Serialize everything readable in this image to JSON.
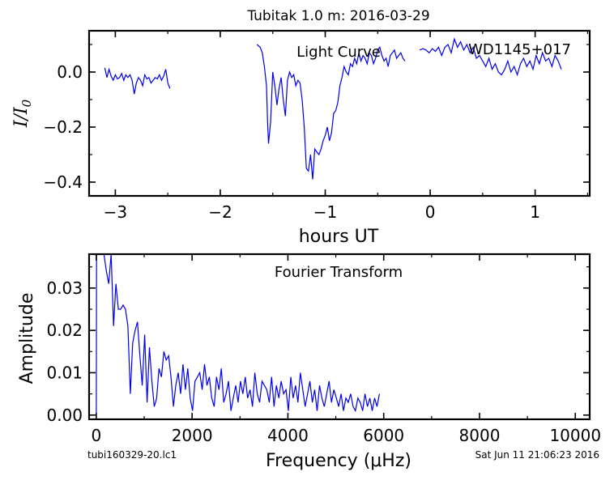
{
  "title": "Tubitak 1.0 m:  2016-03-29",
  "footer": {
    "left": "tubi160329-20.lc1",
    "right": "Sat Jun 11 21:06:23 2016"
  },
  "line_color": "#0000ee",
  "chart_data": [
    {
      "type": "line",
      "annotation_left": "Light Curve",
      "annotation_right": "WD1145+017",
      "xlabel": "hours UT",
      "ylabel": "I/I0",
      "xlim": [
        -3.25,
        1.52
      ],
      "ylim": [
        -0.45,
        0.15
      ],
      "xticks": [
        -3,
        -2,
        -1,
        0,
        1
      ],
      "xtick_labels": [
        "−3",
        "−2",
        "−1",
        "0",
        "1"
      ],
      "yticks": [
        0.0,
        -0.2,
        -0.4
      ],
      "ytick_labels": [
        "0.0",
        "−0.2",
        "−0.4"
      ],
      "grid": false,
      "series": [
        {
          "x": [
            -3.1,
            -3.08,
            -3.06,
            -3.04,
            -3.02,
            -3.0,
            -2.98,
            -2.96,
            -2.94,
            -2.92,
            -2.9,
            -2.88,
            -2.86,
            -2.84,
            -2.82,
            -2.8,
            -2.78,
            -2.76,
            -2.74,
            -2.72,
            -2.7,
            -2.68,
            -2.66,
            -2.64,
            -2.62,
            -2.6,
            -2.58,
            -2.56,
            -2.54,
            -2.52,
            -2.5,
            -2.48
          ],
          "y": [
            0.015,
            -0.02,
            0.01,
            -0.015,
            -0.03,
            -0.01,
            -0.025,
            -0.02,
            -0.005,
            -0.03,
            -0.01,
            -0.02,
            -0.01,
            -0.03,
            -0.08,
            -0.04,
            -0.02,
            -0.03,
            -0.05,
            -0.01,
            -0.025,
            -0.02,
            -0.04,
            -0.03,
            -0.02,
            -0.025,
            -0.01,
            -0.03,
            -0.015,
            0.01,
            -0.04,
            -0.06
          ]
        },
        {
          "x": [
            -1.65,
            -1.62,
            -1.6,
            -1.58,
            -1.56,
            -1.55,
            -1.54,
            -1.52,
            -1.5,
            -1.48,
            -1.46,
            -1.44,
            -1.42,
            -1.4,
            -1.38,
            -1.36,
            -1.34,
            -1.32,
            -1.3,
            -1.28,
            -1.26,
            -1.24,
            -1.22,
            -1.2,
            -1.18,
            -1.16,
            -1.14,
            -1.12,
            -1.1,
            -1.08,
            -1.06,
            -1.04,
            -1.02,
            -1.0,
            -0.98,
            -0.96,
            -0.94,
            -0.92,
            -0.9,
            -0.88,
            -0.86,
            -0.84,
            -0.82,
            -0.8,
            -0.78,
            -0.76,
            -0.74,
            -0.72,
            -0.7,
            -0.68,
            -0.66,
            -0.64,
            -0.62,
            -0.6,
            -0.58,
            -0.56,
            -0.54,
            -0.52,
            -0.5,
            -0.48,
            -0.46,
            -0.44,
            -0.42,
            -0.4,
            -0.38,
            -0.36,
            -0.34,
            -0.32,
            -0.3,
            -0.28,
            -0.26,
            -0.24
          ],
          "y": [
            0.1,
            0.09,
            0.07,
            0.02,
            -0.05,
            -0.18,
            -0.26,
            -0.18,
            0.0,
            -0.05,
            -0.12,
            -0.06,
            -0.02,
            -0.1,
            -0.16,
            -0.03,
            0.0,
            -0.02,
            -0.01,
            -0.05,
            -0.03,
            -0.04,
            -0.1,
            -0.2,
            -0.35,
            -0.36,
            -0.3,
            -0.39,
            -0.28,
            -0.29,
            -0.3,
            -0.28,
            -0.25,
            -0.23,
            -0.2,
            -0.25,
            -0.22,
            -0.15,
            -0.14,
            -0.11,
            -0.05,
            -0.02,
            0.02,
            0.0,
            -0.01,
            0.03,
            0.02,
            0.05,
            0.03,
            0.07,
            0.04,
            0.06,
            0.05,
            0.03,
            0.07,
            0.06,
            0.03,
            0.05,
            0.08,
            0.09,
            0.06,
            0.04,
            0.05,
            0.02,
            0.06,
            0.07,
            0.08,
            0.05,
            0.06,
            0.07,
            0.05,
            0.04
          ]
        },
        {
          "x": [
            -0.1,
            -0.07,
            -0.04,
            -0.01,
            0.02,
            0.05,
            0.08,
            0.11,
            0.14,
            0.17,
            0.2,
            0.23,
            0.26,
            0.29,
            0.32,
            0.35,
            0.38,
            0.41,
            0.44,
            0.47,
            0.5,
            0.53,
            0.56,
            0.59,
            0.62,
            0.65,
            0.68,
            0.71,
            0.74,
            0.77,
            0.8,
            0.83,
            0.86,
            0.89,
            0.92,
            0.95,
            0.98,
            1.01,
            1.04,
            1.07,
            1.1,
            1.13,
            1.16,
            1.19,
            1.22,
            1.25
          ],
          "y": [
            0.08,
            0.085,
            0.08,
            0.07,
            0.085,
            0.075,
            0.09,
            0.06,
            0.09,
            0.1,
            0.07,
            0.12,
            0.09,
            0.11,
            0.08,
            0.1,
            0.07,
            0.09,
            0.05,
            0.06,
            0.04,
            0.02,
            0.05,
            0.01,
            0.03,
            0.0,
            -0.01,
            0.01,
            0.04,
            0.0,
            0.02,
            -0.01,
            0.03,
            0.05,
            0.02,
            0.04,
            0.01,
            0.06,
            0.03,
            0.07,
            0.04,
            0.05,
            0.02,
            0.06,
            0.04,
            0.01
          ]
        }
      ]
    },
    {
      "type": "line",
      "annotation": "Fourier Transform",
      "xlabel": "Frequency (μHz)",
      "ylabel": "Amplitude",
      "xlim": [
        -150,
        10300
      ],
      "ylim": [
        -0.001,
        0.038
      ],
      "xticks": [
        0,
        2000,
        4000,
        6000,
        8000,
        10000
      ],
      "xtick_labels": [
        "0",
        "2000",
        "4000",
        "6000",
        "8000",
        "10000"
      ],
      "yticks": [
        0.0,
        0.01,
        0.02,
        0.03
      ],
      "ytick_labels": [
        "0.00",
        "0.01",
        "0.02",
        "0.03"
      ],
      "grid": false,
      "series": [
        {
          "x": [
            0,
            5,
            10,
            60,
            110,
            160,
            210,
            260,
            310,
            360,
            410,
            460,
            510,
            560,
            610,
            660,
            710,
            760,
            810,
            860,
            910,
            960,
            1010,
            1060,
            1110,
            1160,
            1210,
            1260,
            1310,
            1360,
            1410,
            1460,
            1510,
            1560,
            1610,
            1660,
            1710,
            1760,
            1810,
            1860,
            1910,
            1960,
            2010,
            2060,
            2110,
            2160,
            2210,
            2260,
            2310,
            2360,
            2410,
            2460,
            2510,
            2560,
            2610,
            2660,
            2710,
            2760,
            2810,
            2860,
            2910,
            2960,
            3010,
            3060,
            3110,
            3160,
            3210,
            3260,
            3310,
            3360,
            3410,
            3460,
            3510,
            3560,
            3610,
            3660,
            3710,
            3760,
            3810,
            3860,
            3910,
            3960,
            4010,
            4060,
            4110,
            4160,
            4210,
            4260,
            4310,
            4360,
            4410,
            4460,
            4510,
            4560,
            4610,
            4660,
            4710,
            4760,
            4810,
            4860,
            4910,
            4960,
            5010,
            5060,
            5110,
            5160,
            5210,
            5260,
            5310,
            5360,
            5410,
            5460,
            5510,
            5560,
            5610,
            5660,
            5710,
            5760,
            5810,
            5860,
            5910
          ],
          "y": [
            0.0,
            0.038,
            0.038,
            0.038,
            0.038,
            0.038,
            0.034,
            0.031,
            0.038,
            0.021,
            0.031,
            0.025,
            0.025,
            0.026,
            0.025,
            0.021,
            0.005,
            0.017,
            0.02,
            0.022,
            0.014,
            0.007,
            0.019,
            0.003,
            0.016,
            0.008,
            0.002,
            0.004,
            0.011,
            0.009,
            0.015,
            0.013,
            0.014,
            0.009,
            0.002,
            0.007,
            0.01,
            0.005,
            0.012,
            0.006,
            0.011,
            0.004,
            0.001,
            0.008,
            0.009,
            0.01,
            0.006,
            0.012,
            0.007,
            0.009,
            0.004,
            0.002,
            0.009,
            0.006,
            0.011,
            0.003,
            0.005,
            0.008,
            0.001,
            0.004,
            0.007,
            0.003,
            0.008,
            0.005,
            0.009,
            0.004,
            0.006,
            0.002,
            0.01,
            0.005,
            0.003,
            0.008,
            0.007,
            0.006,
            0.003,
            0.009,
            0.002,
            0.007,
            0.004,
            0.008,
            0.005,
            0.006,
            0.001,
            0.009,
            0.004,
            0.007,
            0.003,
            0.01,
            0.006,
            0.002,
            0.005,
            0.008,
            0.003,
            0.006,
            0.001,
            0.007,
            0.004,
            0.002,
            0.005,
            0.008,
            0.003,
            0.006,
            0.004,
            0.002,
            0.005,
            0.001,
            0.004,
            0.003,
            0.005,
            0.002,
            0.001,
            0.004,
            0.003,
            0.001,
            0.005,
            0.002,
            0.004,
            0.001,
            0.004,
            0.002,
            0.005
          ]
        }
      ]
    }
  ]
}
